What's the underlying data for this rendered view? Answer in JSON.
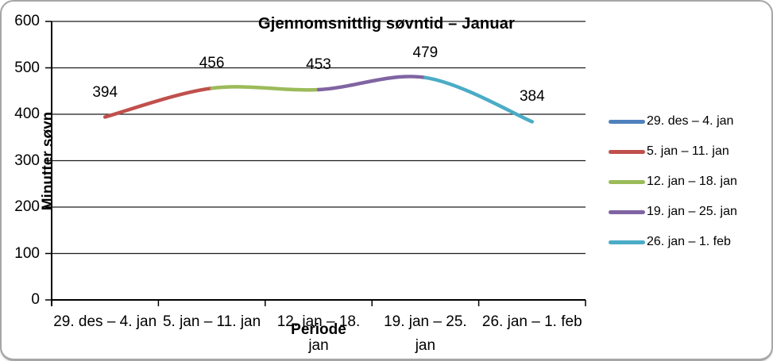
{
  "chart_data": {
    "type": "line",
    "smooth": true,
    "title": "Gjennomsnittlig søvntid – Januar",
    "xlabel": "Periode",
    "ylabel": "Minutter søvn",
    "categories": [
      "29. des – 4. jan",
      "5. jan – 11. jan",
      "12. jan – 18. jan",
      "19. jan – 25. jan",
      "26. jan – 1. feb"
    ],
    "xtick_lines": [
      [
        "29. des – 4. jan"
      ],
      [
        "5. jan – 11. jan"
      ],
      [
        "12. jan – 18.",
        "jan"
      ],
      [
        "19. jan – 25.",
        "jan"
      ],
      [
        "26. jan – 1. feb"
      ]
    ],
    "values": [
      394,
      456,
      453,
      479,
      384
    ],
    "series": [
      {
        "name": "29. des – 4. jan",
        "color": "#4F81BD",
        "value": 394
      },
      {
        "name": "5. jan – 11. jan",
        "color": "#C0504D",
        "value": 456
      },
      {
        "name": "12. jan – 18. jan",
        "color": "#9BBB59",
        "value": 453
      },
      {
        "name": "19. jan – 25. jan",
        "color": "#8064A2",
        "value": 479
      },
      {
        "name": "26. jan – 1. feb",
        "color": "#4BACC6",
        "value": 384
      }
    ],
    "ylim": [
      0,
      600
    ],
    "ytick_step": 100,
    "show_data_labels": true,
    "grid": "horizontal",
    "legend_position": "right",
    "colors": {
      "grid_line": "#1c1c1c",
      "axis_line": "#000000",
      "text": "#000000",
      "chart_border": "#a6a6a6"
    }
  }
}
